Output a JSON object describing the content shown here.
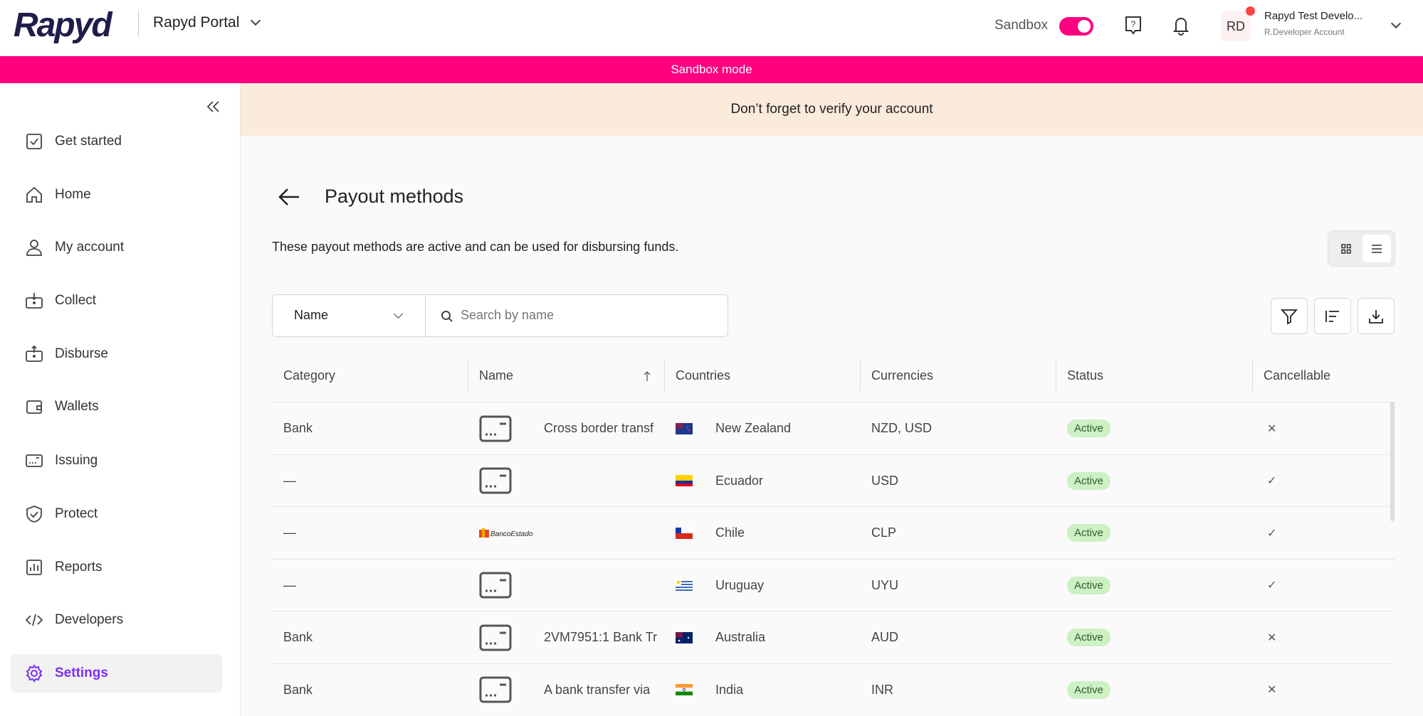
{
  "header": {
    "logo": "Rapyd",
    "portal": "Rapyd Portal",
    "sandbox_label": "Sandbox",
    "sandbox_on": true,
    "avatar": "RD",
    "user_name": "Rapyd Test Develo...",
    "user_sub": "R.Developer Account"
  },
  "sandbox_banner": "Sandbox mode",
  "verify_banner": "Don’t forget to verify your account",
  "sidebar": {
    "items": [
      {
        "label": "Get started",
        "icon": "checkbox-icon"
      },
      {
        "label": "Home",
        "icon": "home-icon"
      },
      {
        "label": "My account",
        "icon": "user-icon"
      },
      {
        "label": "Collect",
        "icon": "collect-icon"
      },
      {
        "label": "Disburse",
        "icon": "disburse-icon"
      },
      {
        "label": "Wallets",
        "icon": "wallet-icon"
      },
      {
        "label": "Issuing",
        "icon": "card-icon"
      },
      {
        "label": "Protect",
        "icon": "shield-icon"
      },
      {
        "label": "Reports",
        "icon": "chart-icon"
      },
      {
        "label": "Developers",
        "icon": "code-icon"
      },
      {
        "label": "Settings",
        "icon": "gear-icon",
        "active": true
      }
    ]
  },
  "page": {
    "title": "Payout methods",
    "description": "These payout methods are active and can be used for disbursing funds."
  },
  "filter": {
    "field": "Name",
    "search_placeholder": "Search by name"
  },
  "table": {
    "columns": [
      "Category",
      "Name",
      "Countries",
      "Currencies",
      "Status",
      "Cancellable"
    ],
    "rows": [
      {
        "category": "Bank",
        "name": "Cross border transf",
        "logo": "bank-card",
        "country": "New Zealand",
        "flag": "nz",
        "currencies": "NZD, USD",
        "status": "Active",
        "cancellable": "✕"
      },
      {
        "category": "—",
        "name": "",
        "logo": "bank-card",
        "country": "Ecuador",
        "flag": "ec",
        "currencies": "USD",
        "status": "Active",
        "cancellable": "✓"
      },
      {
        "category": "—",
        "name": "",
        "logo": "BancoEstado",
        "country": "Chile",
        "flag": "cl",
        "currencies": "CLP",
        "status": "Active",
        "cancellable": "✓"
      },
      {
        "category": "—",
        "name": "",
        "logo": "bank-card",
        "country": "Uruguay",
        "flag": "uy",
        "currencies": "UYU",
        "status": "Active",
        "cancellable": "✓"
      },
      {
        "category": "Bank",
        "name": "2VM7951:1 Bank Tr",
        "logo": "bank-card",
        "country": "Australia",
        "flag": "au",
        "currencies": "AUD",
        "status": "Active",
        "cancellable": "✕"
      },
      {
        "category": "Bank",
        "name": "A bank transfer via",
        "logo": "bank-card",
        "country": "India",
        "flag": "in",
        "currencies": "INR",
        "status": "Active",
        "cancellable": "✕"
      }
    ]
  },
  "colors": {
    "brand": "#ff0080",
    "accent": "#7b2ff7",
    "active_badge": "#cdf0c5"
  }
}
